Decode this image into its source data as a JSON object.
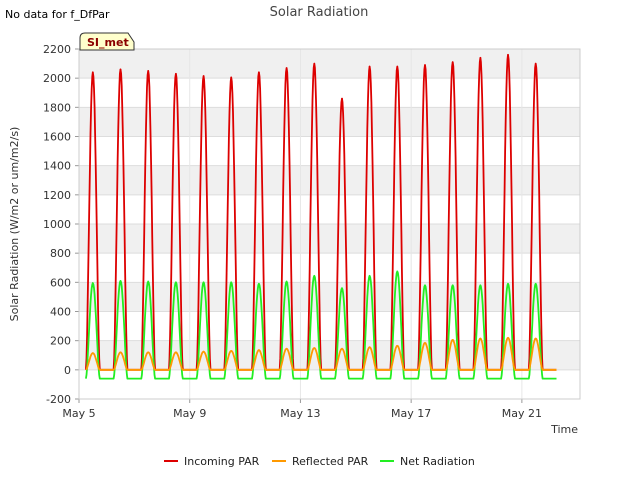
{
  "no_data_text": "No data for f_DfPar",
  "site_label": "SI_met",
  "colors": {
    "incoming": "#dd0000",
    "reflected": "#ff9900",
    "net": "#22ee22"
  },
  "chart_data": {
    "type": "line",
    "title": "Solar Radiation",
    "xlabel": "Time",
    "ylabel": "Solar Radiation (W/m2 or um/m2/s)",
    "ylim": [
      -200,
      2200
    ],
    "yticks": [
      -200,
      0,
      200,
      400,
      600,
      800,
      1000,
      1200,
      1400,
      1600,
      1800,
      2000,
      2200
    ],
    "xlim_days": [
      "May 5",
      "May 23"
    ],
    "xticks": [
      "May 5",
      "May 9",
      "May 13",
      "May 17",
      "May 21"
    ],
    "grid": true,
    "legend_position": "bottom",
    "days": [
      "May 5",
      "May 6",
      "May 7",
      "May 8",
      "May 9",
      "May 10",
      "May 11",
      "May 12",
      "May 13",
      "May 14",
      "May 15",
      "May 16",
      "May 17",
      "May 18",
      "May 19",
      "May 20",
      "May 21",
      "May 22"
    ],
    "series": [
      {
        "name": "Incoming PAR",
        "daily_peak": [
          2040,
          2060,
          2050,
          2030,
          2015,
          2005,
          2040,
          2070,
          2100,
          1860,
          2080,
          2080,
          2090,
          2110,
          2140,
          2160,
          2100,
          0
        ],
        "night_value": 0
      },
      {
        "name": "Reflected PAR",
        "daily_peak": [
          115,
          120,
          120,
          120,
          125,
          130,
          135,
          145,
          150,
          145,
          155,
          165,
          185,
          205,
          215,
          220,
          215,
          0
        ],
        "night_value": 0
      },
      {
        "name": "Net Radiation",
        "daily_peak": [
          595,
          610,
          605,
          600,
          600,
          600,
          590,
          605,
          645,
          560,
          645,
          675,
          580,
          580,
          580,
          590,
          590,
          0
        ],
        "night_value": -60
      }
    ]
  }
}
